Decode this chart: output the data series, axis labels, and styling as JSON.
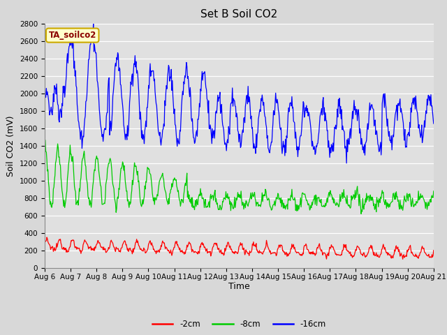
{
  "title": "Set B Soil CO2",
  "ylabel": "Soil CO2 (mV)",
  "xlabel": "Time",
  "legend_label": "TA_soilco2",
  "series_labels": [
    "-2cm",
    "-8cm",
    "-16cm"
  ],
  "series_colors": [
    "#ff0000",
    "#00cc00",
    "#0000ff"
  ],
  "ylim": [
    0,
    2800
  ],
  "yticks": [
    0,
    200,
    400,
    600,
    800,
    1000,
    1200,
    1400,
    1600,
    1800,
    2000,
    2200,
    2400,
    2600,
    2800
  ],
  "fig_bg": "#d8d8d8",
  "plot_bg": "#e0e0e0",
  "title_fontsize": 11,
  "axis_fontsize": 9,
  "tick_fontsize": 7.5,
  "legend_fontsize": 8.5
}
